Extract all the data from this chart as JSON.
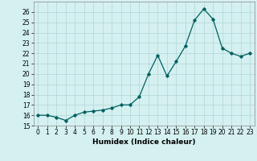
{
  "x": [
    0,
    1,
    2,
    3,
    4,
    5,
    6,
    7,
    8,
    9,
    10,
    11,
    12,
    13,
    14,
    15,
    16,
    17,
    18,
    19,
    20,
    21,
    22,
    23
  ],
  "y": [
    16,
    16,
    15.8,
    15.5,
    16.0,
    16.3,
    16.4,
    16.5,
    16.7,
    17.0,
    17.0,
    17.8,
    20.0,
    21.8,
    19.8,
    21.2,
    22.7,
    25.2,
    26.3,
    25.3,
    22.5,
    22.0,
    21.7,
    22.0
  ],
  "line_color": "#006060",
  "marker": "D",
  "marker_size": 1.8,
  "line_width": 0.9,
  "background_color": "#d5f0f0",
  "grid_color": "#b0d5d5",
  "xlabel": "Humidex (Indice chaleur)",
  "xlim": [
    -0.5,
    23.5
  ],
  "ylim": [
    15,
    27
  ],
  "yticks": [
    15,
    16,
    17,
    18,
    19,
    20,
    21,
    22,
    23,
    24,
    25,
    26
  ],
  "xticks": [
    0,
    1,
    2,
    3,
    4,
    5,
    6,
    7,
    8,
    9,
    10,
    11,
    12,
    13,
    14,
    15,
    16,
    17,
    18,
    19,
    20,
    21,
    22,
    23
  ],
  "tick_fontsize": 5.5,
  "xlabel_fontsize": 6.5
}
